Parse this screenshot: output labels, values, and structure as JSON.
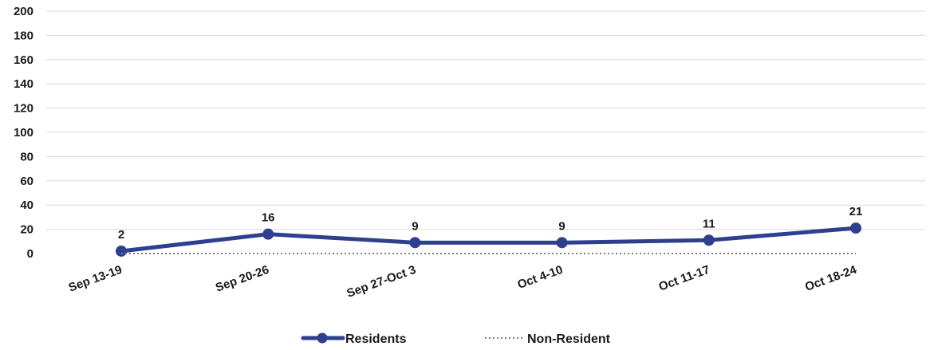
{
  "chart_data": {
    "type": "line",
    "title": "",
    "xlabel": "",
    "ylabel": "",
    "categories": [
      "Sep 13-19",
      "Sep 20-26",
      "Sep 27-Oct 3",
      "Oct 4-10",
      "Oct 11-17",
      "Oct 18-24"
    ],
    "ylim": [
      0,
      200
    ],
    "yticks": [
      "0",
      "20",
      "40",
      "60",
      "80",
      "100",
      "120",
      "140",
      "160",
      "180",
      "200"
    ],
    "grid": true,
    "legend_position": "bottom",
    "series": [
      {
        "name": "Residents",
        "values": [
          2,
          16,
          9,
          9,
          11,
          21
        ],
        "data_labels": [
          "2",
          "16",
          "9",
          "9",
          "11",
          "21"
        ],
        "color": "#2e3f8f",
        "style": "solid-with-markers"
      },
      {
        "name": "Non-Resident",
        "values": [
          0,
          0,
          0,
          0,
          0,
          0
        ],
        "color": "#7f7f7f",
        "style": "dotted"
      }
    ]
  }
}
